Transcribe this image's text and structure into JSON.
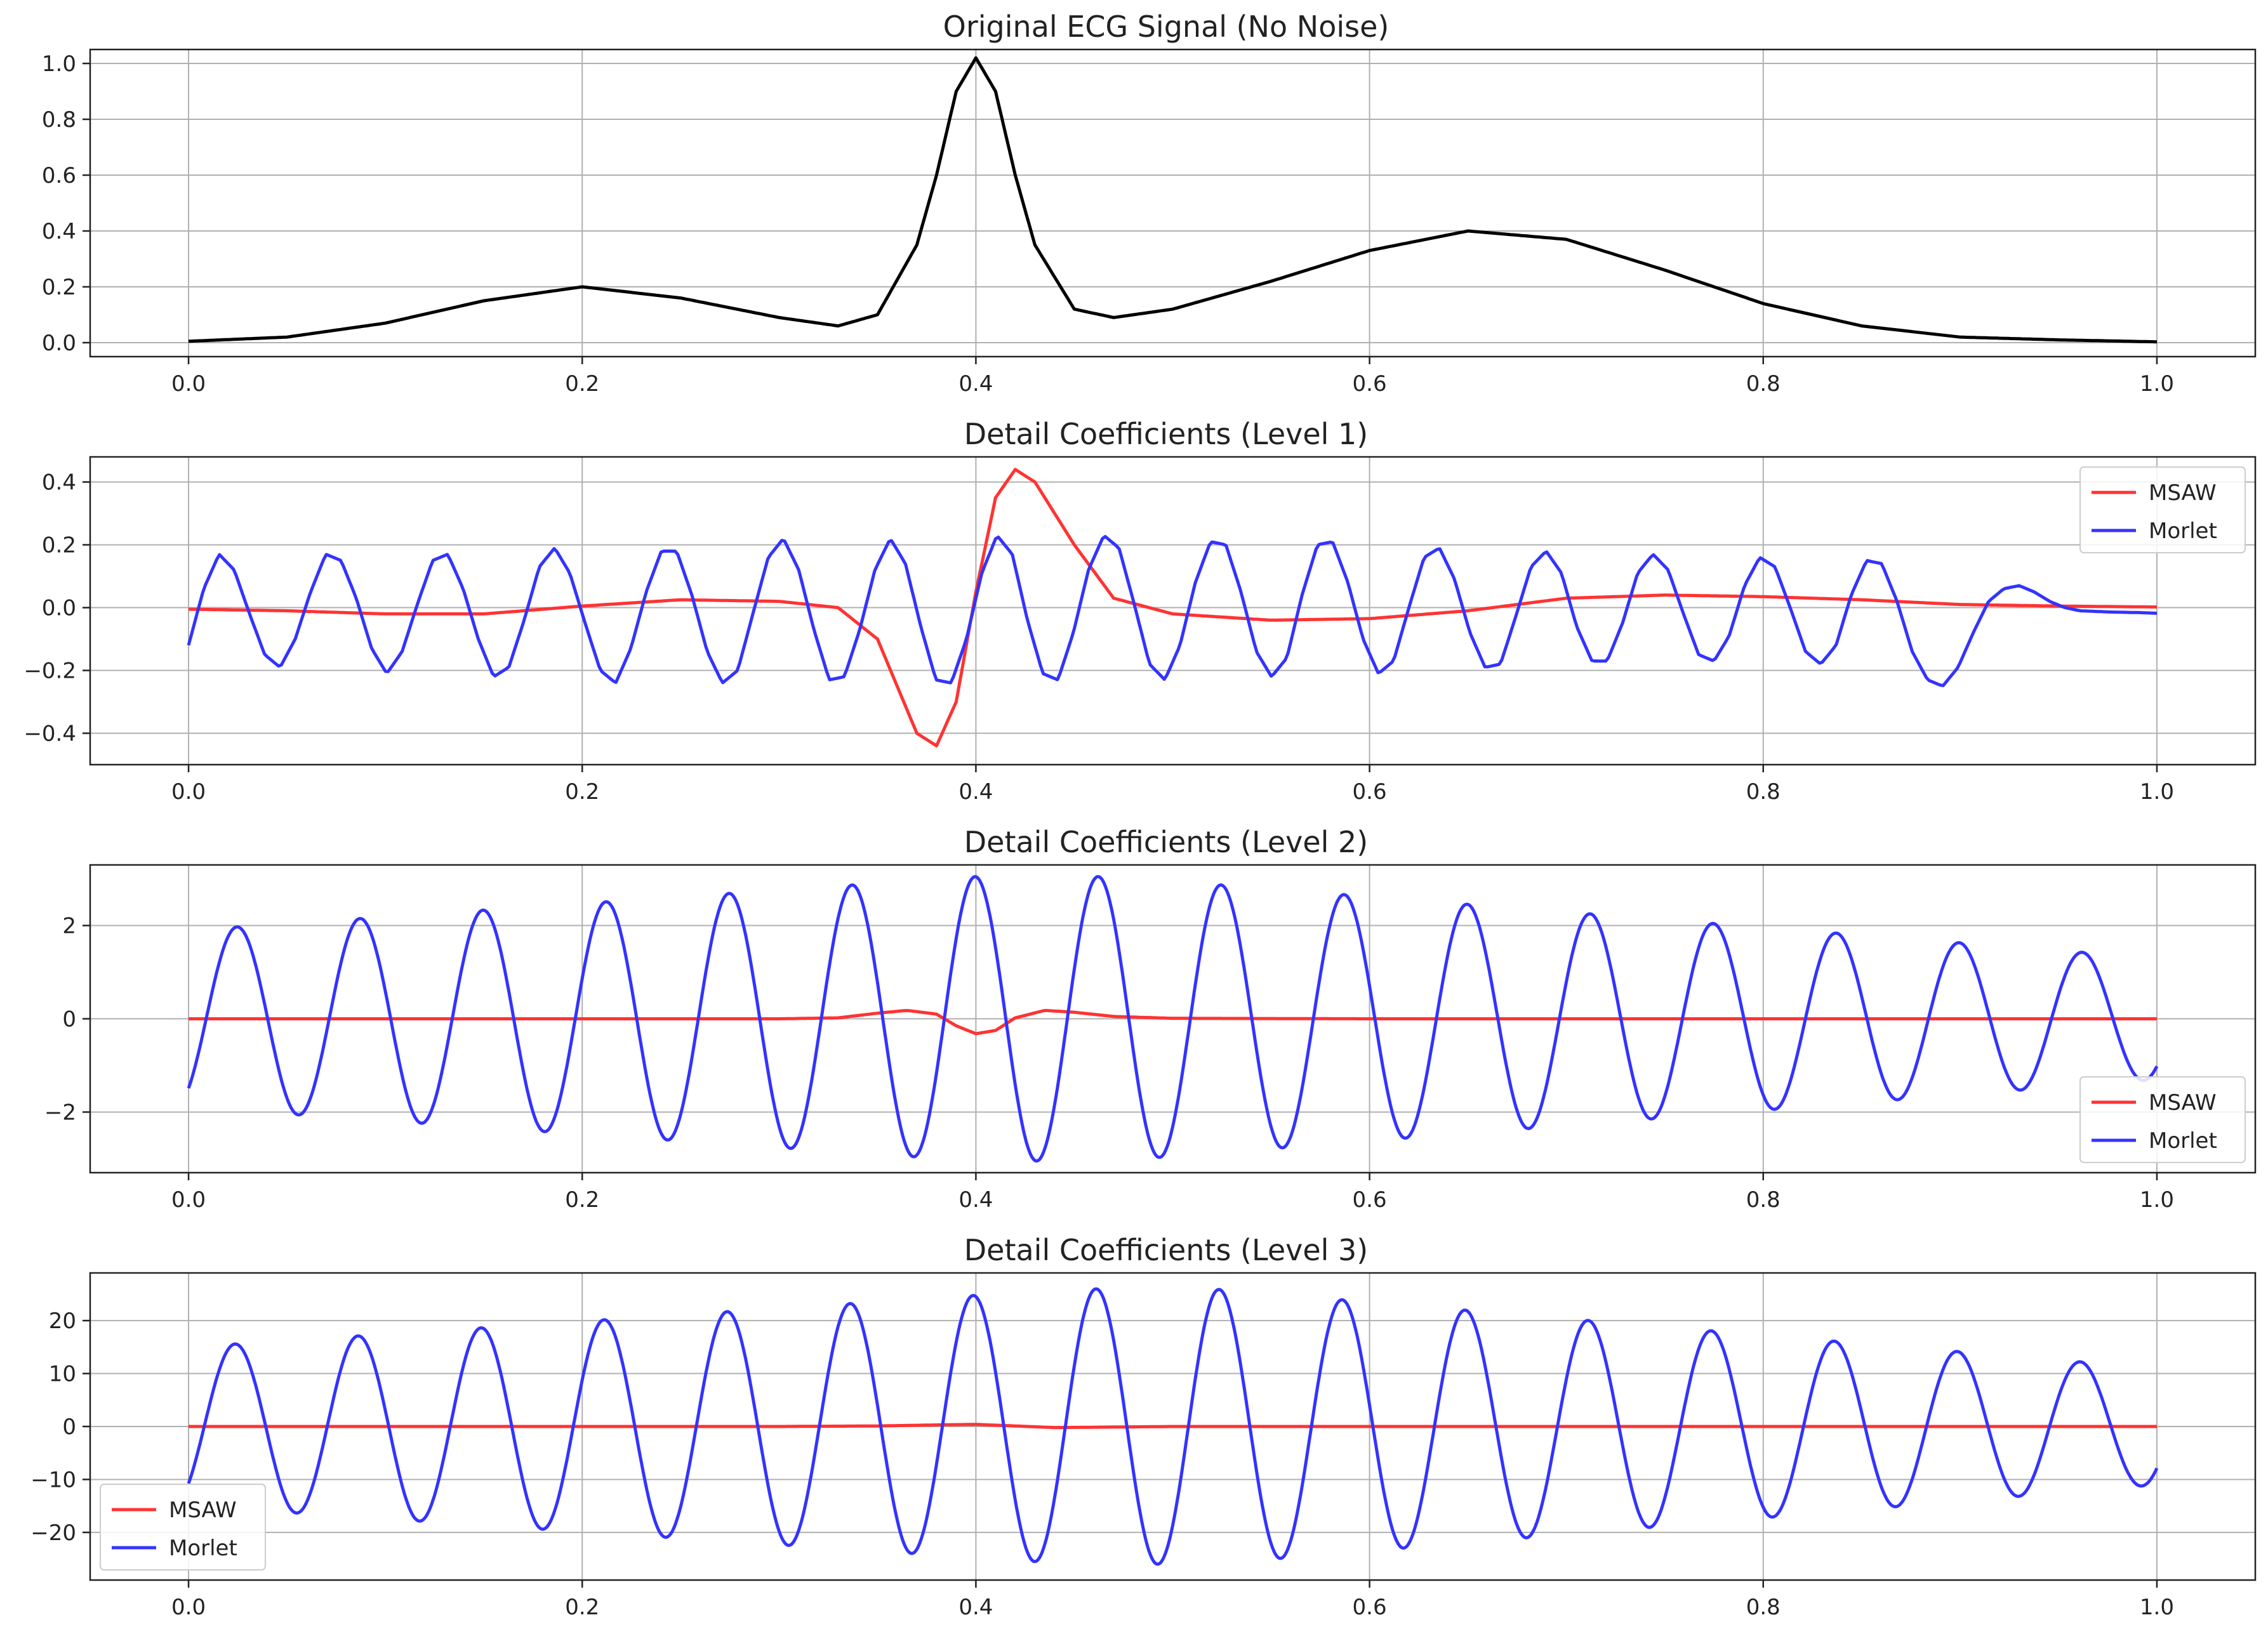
{
  "colors": {
    "signal": "#000000",
    "msaw": "#ff3333",
    "morlet": "#3333ff",
    "grid": "#b0b0b0",
    "axes": "#222222"
  },
  "chart_data": [
    {
      "type": "line",
      "title": "Original ECG Signal (No Noise)",
      "xlabel": "",
      "ylabel": "",
      "xlim": [
        -0.05,
        1.05
      ],
      "ylim": [
        -0.05,
        1.05
      ],
      "xticks": [
        "0.0",
        "0.2",
        "0.4",
        "0.6",
        "0.8",
        "1.0"
      ],
      "yticks": [
        "0.0",
        "0.2",
        "0.4",
        "0.6",
        "0.8",
        "1.0"
      ],
      "yvals": [
        0,
        0.2,
        0.4,
        0.6,
        0.8,
        1.0
      ],
      "grid": true,
      "legend": null,
      "series": [
        {
          "color": "#000000",
          "x": [
            0,
            0.05,
            0.1,
            0.15,
            0.2,
            0.25,
            0.3,
            0.33,
            0.35,
            0.37,
            0.38,
            0.39,
            0.4,
            0.41,
            0.42,
            0.43,
            0.45,
            0.47,
            0.5,
            0.55,
            0.6,
            0.65,
            0.7,
            0.75,
            0.8,
            0.85,
            0.9,
            0.95,
            1.0
          ],
          "y": [
            0.005,
            0.02,
            0.07,
            0.15,
            0.2,
            0.16,
            0.09,
            0.06,
            0.1,
            0.35,
            0.6,
            0.9,
            1.02,
            0.9,
            0.6,
            0.35,
            0.12,
            0.09,
            0.12,
            0.22,
            0.33,
            0.4,
            0.37,
            0.26,
            0.14,
            0.06,
            0.02,
            0.01,
            0.003
          ]
        }
      ]
    },
    {
      "type": "line",
      "title": "Detail Coefficients (Level 1)",
      "xlabel": "",
      "ylabel": "",
      "xlim": [
        -0.05,
        1.05
      ],
      "ylim": [
        -0.5,
        0.48
      ],
      "xticks": [
        "0.0",
        "0.2",
        "0.4",
        "0.6",
        "0.8",
        "1.0"
      ],
      "yticks": [
        "−0.4",
        "−0.2",
        "0.0",
        "0.2",
        "0.4"
      ],
      "yvals": [
        -0.4,
        -0.2,
        0,
        0.2,
        0.4
      ],
      "grid": true,
      "legend": "upper right",
      "series": [
        {
          "name": "MSAW",
          "color": "#ff3333",
          "x": [
            0,
            0.05,
            0.1,
            0.15,
            0.2,
            0.25,
            0.3,
            0.33,
            0.35,
            0.37,
            0.38,
            0.39,
            0.4,
            0.41,
            0.42,
            0.43,
            0.45,
            0.47,
            0.5,
            0.55,
            0.6,
            0.65,
            0.7,
            0.75,
            0.8,
            0.85,
            0.9,
            0.95,
            1.0
          ],
          "y": [
            -0.005,
            -0.01,
            -0.02,
            -0.02,
            0.005,
            0.025,
            0.02,
            0.0,
            -0.1,
            -0.4,
            -0.44,
            -0.3,
            0.05,
            0.35,
            0.44,
            0.4,
            0.2,
            0.03,
            -0.02,
            -0.04,
            -0.035,
            -0.01,
            0.03,
            0.04,
            0.035,
            0.025,
            0.01,
            0.005,
            0.002
          ]
        },
        {
          "name": "Morlet",
          "color": "#3333ff",
          "x": [
            0,
            0.0077,
            0.0155,
            0.0232,
            0.031,
            0.0387,
            0.0465,
            0.0542,
            0.062,
            0.0697,
            0.0775,
            0.0852,
            0.093,
            0.1007,
            0.1085,
            0.1162,
            0.124,
            0.1317,
            0.1395,
            0.1472,
            0.155,
            0.1627,
            0.1705,
            0.1782,
            0.186,
            0.1937,
            0.2015,
            0.2092,
            0.217,
            0.2247,
            0.2325,
            0.2402,
            0.248,
            0.2557,
            0.2635,
            0.2712,
            0.279,
            0.2867,
            0.2945,
            0.3022,
            0.31,
            0.3177,
            0.3255,
            0.3332,
            0.341,
            0.3487,
            0.3565,
            0.3642,
            0.372,
            0.3797,
            0.3875,
            0.3952,
            0.403,
            0.4107,
            0.4185,
            0.4262,
            0.434,
            0.4417,
            0.4495,
            0.4572,
            0.465,
            0.4727,
            0.4805,
            0.4882,
            0.496,
            0.5037,
            0.5115,
            0.5192,
            0.527,
            0.5347,
            0.5425,
            0.5502,
            0.558,
            0.5657,
            0.5735,
            0.5812,
            0.589,
            0.5967,
            0.6045,
            0.6122,
            0.62,
            0.6277,
            0.6355,
            0.6432,
            0.651,
            0.6587,
            0.6665,
            0.6742,
            0.682,
            0.6897,
            0.6975,
            0.7052,
            0.713,
            0.7207,
            0.7285,
            0.7362,
            0.744,
            0.7517,
            0.7595,
            0.7672,
            0.775,
            0.7827,
            0.7905,
            0.7982,
            0.806,
            0.8137,
            0.8215,
            0.8292,
            0.837,
            0.8447,
            0.8525,
            0.8602,
            0.868,
            0.8757,
            0.8835,
            0.8912,
            0.899,
            0.9067,
            0.9145,
            0.9222,
            0.93,
            0.9377,
            0.9455,
            0.9532,
            0.961,
            0.9687,
            0.9765,
            0.9842,
            0.992,
            1.0
          ],
          "y": [
            -0.12,
            0.06,
            0.17,
            0.12,
            -0.02,
            -0.15,
            -0.19,
            -0.1,
            0.05,
            0.17,
            0.15,
            0.03,
            -0.13,
            -0.21,
            -0.14,
            0.01,
            0.15,
            0.17,
            0.06,
            -0.1,
            -0.22,
            -0.19,
            -0.04,
            0.13,
            0.19,
            0.11,
            -0.05,
            -0.2,
            -0.24,
            -0.13,
            0.05,
            0.18,
            0.18,
            0.04,
            -0.14,
            -0.24,
            -0.2,
            -0.02,
            0.16,
            0.22,
            0.12,
            -0.07,
            -0.23,
            -0.22,
            -0.07,
            0.12,
            0.22,
            0.14,
            -0.06,
            -0.23,
            -0.24,
            -0.1,
            0.11,
            0.23,
            0.17,
            -0.04,
            -0.21,
            -0.23,
            -0.08,
            0.12,
            0.23,
            0.19,
            0.01,
            -0.18,
            -0.23,
            -0.12,
            0.08,
            0.21,
            0.2,
            0.05,
            -0.14,
            -0.22,
            -0.16,
            0.04,
            0.2,
            0.21,
            0.08,
            -0.1,
            -0.21,
            -0.17,
            0.0,
            0.16,
            0.19,
            0.09,
            -0.08,
            -0.19,
            -0.18,
            -0.03,
            0.13,
            0.18,
            0.11,
            -0.06,
            -0.17,
            -0.17,
            -0.05,
            0.11,
            0.17,
            0.12,
            -0.02,
            -0.15,
            -0.17,
            -0.09,
            0.07,
            0.16,
            0.13,
            0.0,
            -0.14,
            -0.18,
            -0.12,
            0.04,
            0.15,
            0.14,
            0.02,
            -0.14,
            -0.23,
            -0.25,
            -0.19,
            -0.08,
            0.02,
            0.06,
            0.07,
            0.05,
            0.02,
            0.0,
            -0.01,
            -0.012,
            -0.014,
            -0.015,
            -0.016,
            -0.018
          ]
        }
      ]
    },
    {
      "type": "line",
      "title": "Detail Coefficients (Level 2)",
      "xlabel": "",
      "ylabel": "",
      "xlim": [
        -0.05,
        1.05
      ],
      "ylim": [
        -3.3,
        3.3
      ],
      "xticks": [
        "0.0",
        "0.2",
        "0.4",
        "0.6",
        "0.8",
        "1.0"
      ],
      "yticks": [
        "−2",
        "0",
        "2"
      ],
      "yvals": [
        -2,
        0,
        2
      ],
      "grid": true,
      "legend": "lower right",
      "series": [
        {
          "name": "MSAW",
          "color": "#ff3333",
          "x": [
            0,
            0.1,
            0.2,
            0.3,
            0.33,
            0.35,
            0.365,
            0.38,
            0.39,
            0.4,
            0.41,
            0.42,
            0.435,
            0.45,
            0.47,
            0.5,
            0.6,
            0.7,
            0.8,
            0.9,
            1.0
          ],
          "y": [
            0,
            0,
            0,
            0,
            0.02,
            0.12,
            0.18,
            0.1,
            -0.15,
            -0.32,
            -0.25,
            0.02,
            0.18,
            0.14,
            0.05,
            0.01,
            0,
            0,
            0,
            0,
            0
          ]
        },
        {
          "name": "Morlet",
          "color": "#3333ff",
          "phase": -0.9,
          "env_t": [
            0,
            0.4,
            0.47,
            1.0
          ],
          "env_a": [
            1.9,
            3.05,
            3.05,
            1.3
          ]
        }
      ]
    },
    {
      "type": "line",
      "title": "Detail Coefficients (Level 3)",
      "xlabel": "",
      "ylabel": "",
      "xlim": [
        -0.05,
        1.05
      ],
      "ylim": [
        -29,
        29
      ],
      "xticks": [
        "0.0",
        "0.2",
        "0.4",
        "0.6",
        "0.8",
        "1.0"
      ],
      "yticks": [
        "−20",
        "−10",
        "0",
        "10",
        "20"
      ],
      "yvals": [
        -20,
        -10,
        0,
        10,
        20
      ],
      "grid": true,
      "legend": "lower left",
      "series": [
        {
          "name": "MSAW",
          "color": "#ff3333",
          "x": [
            0,
            0.1,
            0.2,
            0.3,
            0.35,
            0.38,
            0.4,
            0.42,
            0.44,
            0.5,
            0.6,
            0.7,
            0.8,
            0.9,
            1.0
          ],
          "y": [
            0,
            0,
            0,
            0,
            0.1,
            0.3,
            0.4,
            0.1,
            -0.2,
            0,
            0,
            0,
            0,
            0,
            0
          ]
        },
        {
          "name": "Morlet",
          "color": "#3333ff",
          "phase": -0.8,
          "env_t": [
            0,
            0.45,
            0.52,
            1.0
          ],
          "env_a": [
            15,
            26,
            26,
            11
          ]
        }
      ]
    }
  ]
}
